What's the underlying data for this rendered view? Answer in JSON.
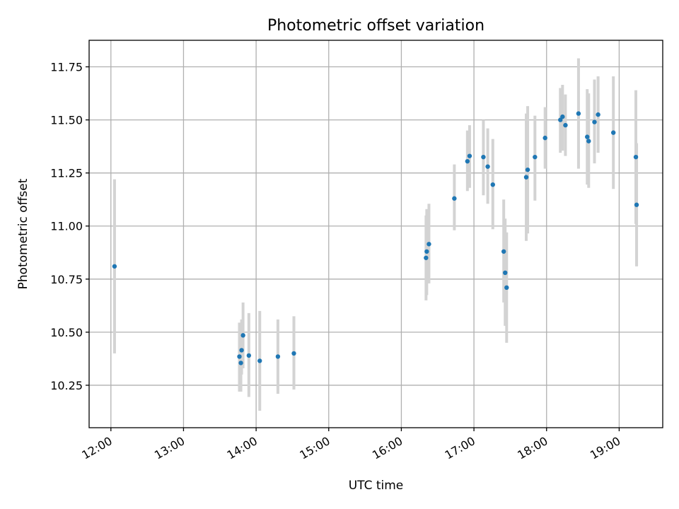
{
  "chart_data": {
    "type": "scatter",
    "title": "Photometric offset variation",
    "xlabel": "UTC time",
    "ylabel": "Photometric offset",
    "grid": true,
    "x_unit": "hours UTC",
    "xlim": [
      11.7,
      19.6
    ],
    "ylim": [
      10.05,
      11.875
    ],
    "x_ticks": [
      {
        "value": 12,
        "label": "12:00"
      },
      {
        "value": 13,
        "label": "13:00"
      },
      {
        "value": 14,
        "label": "14:00"
      },
      {
        "value": 15,
        "label": "15:00"
      },
      {
        "value": 16,
        "label": "16:00"
      },
      {
        "value": 17,
        "label": "17:00"
      },
      {
        "value": 18,
        "label": "18:00"
      },
      {
        "value": 19,
        "label": "19:00"
      }
    ],
    "y_ticks": [
      {
        "value": 10.25,
        "label": "10.25"
      },
      {
        "value": 10.5,
        "label": "10.50"
      },
      {
        "value": 10.75,
        "label": "10.75"
      },
      {
        "value": 11.0,
        "label": "11.00"
      },
      {
        "value": 11.25,
        "label": "11.25"
      },
      {
        "value": 11.5,
        "label": "11.50"
      },
      {
        "value": 11.75,
        "label": "11.75"
      }
    ],
    "series": [
      {
        "name": "offset",
        "marker_color": "#1f77b4",
        "errorbar_color": "#d3d3d3",
        "points": [
          {
            "x": 12.05,
            "y": 10.81,
            "lo": 10.4,
            "hi": 11.22
          },
          {
            "x": 13.77,
            "y": 10.385,
            "lo": 10.22,
            "hi": 10.545
          },
          {
            "x": 13.79,
            "y": 10.355,
            "lo": 10.22,
            "hi": 10.5
          },
          {
            "x": 13.8,
            "y": 10.415,
            "lo": 10.3,
            "hi": 10.56
          },
          {
            "x": 13.82,
            "y": 10.485,
            "lo": 10.33,
            "hi": 10.64
          },
          {
            "x": 13.9,
            "y": 10.39,
            "lo": 10.195,
            "hi": 10.59
          },
          {
            "x": 14.05,
            "y": 10.365,
            "lo": 10.13,
            "hi": 10.6
          },
          {
            "x": 14.3,
            "y": 10.385,
            "lo": 10.21,
            "hi": 10.56
          },
          {
            "x": 14.52,
            "y": 10.4,
            "lo": 10.23,
            "hi": 10.575
          },
          {
            "x": 16.34,
            "y": 10.85,
            "lo": 10.65,
            "hi": 11.05
          },
          {
            "x": 16.35,
            "y": 10.88,
            "lo": 10.675,
            "hi": 11.08
          },
          {
            "x": 16.38,
            "y": 10.915,
            "lo": 10.73,
            "hi": 11.105
          },
          {
            "x": 16.73,
            "y": 11.13,
            "lo": 10.98,
            "hi": 11.29
          },
          {
            "x": 16.91,
            "y": 11.305,
            "lo": 11.165,
            "hi": 11.45
          },
          {
            "x": 16.94,
            "y": 11.33,
            "lo": 11.18,
            "hi": 11.475
          },
          {
            "x": 17.13,
            "y": 11.325,
            "lo": 11.145,
            "hi": 11.5
          },
          {
            "x": 17.19,
            "y": 11.28,
            "lo": 11.105,
            "hi": 11.46
          },
          {
            "x": 17.26,
            "y": 11.195,
            "lo": 10.985,
            "hi": 11.41
          },
          {
            "x": 17.41,
            "y": 10.88,
            "lo": 10.64,
            "hi": 11.125
          },
          {
            "x": 17.43,
            "y": 10.78,
            "lo": 10.53,
            "hi": 11.035
          },
          {
            "x": 17.45,
            "y": 10.71,
            "lo": 10.45,
            "hi": 10.97
          },
          {
            "x": 17.72,
            "y": 11.23,
            "lo": 10.93,
            "hi": 11.53
          },
          {
            "x": 17.74,
            "y": 11.265,
            "lo": 10.965,
            "hi": 11.565
          },
          {
            "x": 17.84,
            "y": 11.325,
            "lo": 11.12,
            "hi": 11.52
          },
          {
            "x": 17.98,
            "y": 11.415,
            "lo": 11.27,
            "hi": 11.56
          },
          {
            "x": 18.19,
            "y": 11.5,
            "lo": 11.345,
            "hi": 11.65
          },
          {
            "x": 18.22,
            "y": 11.515,
            "lo": 11.355,
            "hi": 11.665
          },
          {
            "x": 18.26,
            "y": 11.475,
            "lo": 11.33,
            "hi": 11.62
          },
          {
            "x": 18.44,
            "y": 11.53,
            "lo": 11.27,
            "hi": 11.79
          },
          {
            "x": 18.56,
            "y": 11.42,
            "lo": 11.195,
            "hi": 11.645
          },
          {
            "x": 18.58,
            "y": 11.4,
            "lo": 11.18,
            "hi": 11.625
          },
          {
            "x": 18.66,
            "y": 11.49,
            "lo": 11.295,
            "hi": 11.69
          },
          {
            "x": 18.71,
            "y": 11.525,
            "lo": 11.345,
            "hi": 11.705
          },
          {
            "x": 18.92,
            "y": 11.44,
            "lo": 11.175,
            "hi": 11.705
          },
          {
            "x": 19.23,
            "y": 11.325,
            "lo": 11.01,
            "hi": 11.64
          },
          {
            "x": 19.24,
            "y": 11.1,
            "lo": 10.81,
            "hi": 11.39
          }
        ]
      }
    ]
  }
}
